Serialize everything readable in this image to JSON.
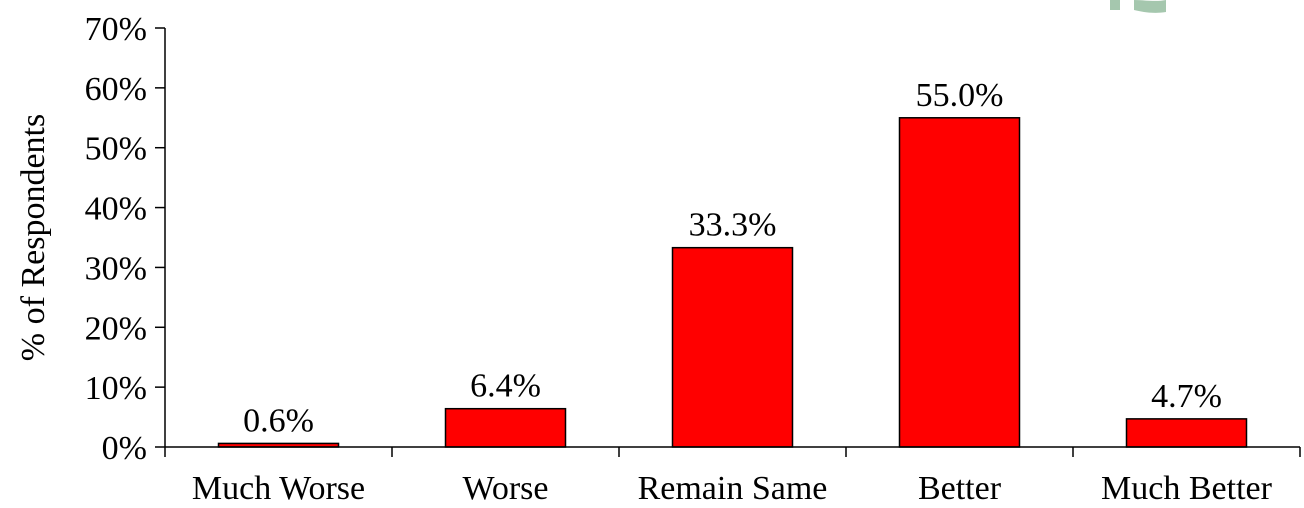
{
  "chart_data": {
    "type": "bar",
    "title": "",
    "xlabel": "",
    "ylabel": "% of Respondents",
    "categories": [
      "Much Worse",
      "Worse",
      "Remain Same",
      "Better",
      "Much Better"
    ],
    "values": [
      0.6,
      6.4,
      33.3,
      55.0,
      4.7
    ],
    "data_labels": [
      "0.6%",
      "6.4%",
      "33.3%",
      "55.0%",
      "4.7%"
    ],
    "ylim": [
      0,
      70
    ],
    "yticks": [
      0,
      10,
      20,
      30,
      40,
      50,
      60,
      70
    ],
    "ytick_labels": [
      "0%",
      "10%",
      "20%",
      "30%",
      "40%",
      "50%",
      "60%",
      "70%"
    ],
    "grid": false,
    "legend": "none",
    "bar_color": "#ff0000",
    "bar_outline_color": "#000000",
    "logo_color": "#8fb99a"
  }
}
